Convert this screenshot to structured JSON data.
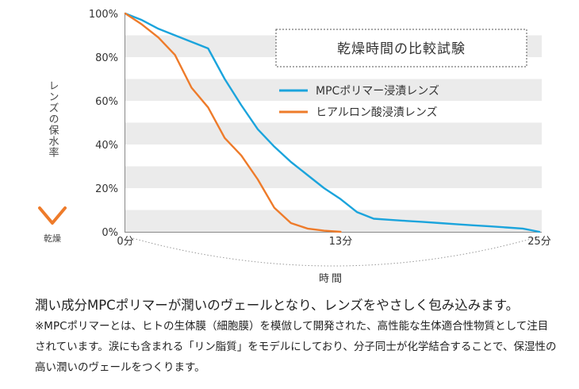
{
  "chart_data": {
    "type": "line",
    "title": "乾燥時間の比較試験",
    "ylabel": "レンズの保水率",
    "ylabel_arrow_label": "乾燥",
    "xlabel": "時間",
    "yticks": [
      "0%",
      "20%",
      "40%",
      "60%",
      "80%",
      "100%"
    ],
    "xticks": [
      {
        "x": 0,
        "label": "0分"
      },
      {
        "x": 13,
        "label": "13分"
      },
      {
        "x": 25,
        "label": "25分"
      }
    ],
    "xlim": [
      0,
      25
    ],
    "ylim": [
      0,
      100
    ],
    "grid": "alternating-bands",
    "legend_position": "top-right",
    "series": [
      {
        "name": "MPCポリマー浸漬レンズ",
        "color": "#1ba4dc",
        "x": [
          0,
          1,
          2,
          3,
          4,
          5,
          6,
          7,
          8,
          9,
          10,
          11,
          12,
          13,
          14,
          15,
          16,
          17,
          18,
          19,
          20,
          21,
          22,
          23,
          24,
          25
        ],
        "values": [
          100,
          97,
          93,
          90,
          87,
          84,
          70,
          58,
          47,
          39,
          32,
          26,
          20,
          15,
          9,
          6,
          5.5,
          5,
          4.5,
          4,
          3.5,
          3,
          2.5,
          2,
          1.5,
          0
        ]
      },
      {
        "name": "ヒアルロン酸浸漬レンズ",
        "color": "#ee7b2a",
        "x": [
          0,
          1,
          2,
          3,
          4,
          5,
          6,
          7,
          8,
          9,
          10,
          11,
          12,
          13
        ],
        "values": [
          100,
          95,
          89,
          81,
          66,
          57,
          43,
          35,
          24,
          11,
          4,
          1.5,
          0.5,
          0
        ]
      }
    ]
  },
  "caption": {
    "main": "潤い成分MPCポリマーが潤いのヴェールとなり、レンズをやさしく包み込みます。",
    "note": "※MPCポリマーとは、ヒトの生体膜（細胞膜）を模倣して開発された、高性能な生体適合性物質として注目されています。涙にも含まれる「リン脂質」をモデルにしており、分子同士が化学結合することで、保湿性の高い潤いのヴェールをつくります。"
  }
}
